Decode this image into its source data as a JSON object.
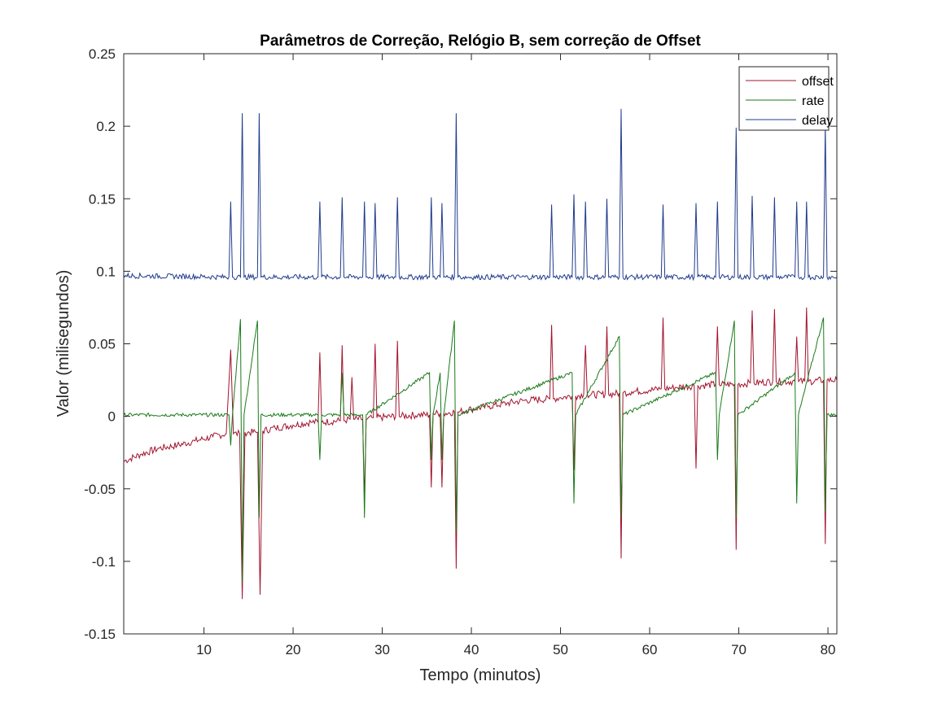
{
  "chart_data": {
    "type": "line",
    "title": "Parâmetros de Correção, Relógio B, sem correção de Offset",
    "xlabel": "Tempo (minutos)",
    "ylabel": "Valor (milisegundos)",
    "xlim": [
      1,
      81
    ],
    "ylim": [
      -0.15,
      0.25
    ],
    "xticks": [
      10,
      20,
      30,
      40,
      50,
      60,
      70,
      80
    ],
    "yticks": [
      -0.15,
      -0.1,
      -0.05,
      0,
      0.05,
      0.1,
      0.15,
      0.2,
      0.25
    ],
    "grid": false,
    "legend": {
      "position": "top-right",
      "entries": [
        "offset",
        "rate",
        "delay"
      ]
    },
    "series": [
      {
        "name": "offset",
        "color": "#a2142f",
        "x": [
          1,
          3,
          5,
          7,
          9,
          11,
          12.5,
          13,
          13.3,
          14,
          14.3,
          14.6,
          16,
          16.3,
          16.6,
          18,
          20,
          22,
          22.8,
          23,
          23.2,
          25.3,
          25.5,
          25.7,
          26.4,
          26.6,
          26.8,
          27.8,
          28,
          28.2,
          29,
          29.2,
          29.4,
          31.5,
          31.7,
          31.9,
          34,
          35.3,
          35.5,
          35.7,
          36.5,
          36.7,
          36.9,
          38.1,
          38.3,
          38.5,
          40,
          42,
          44,
          46,
          48.8,
          49,
          49.2,
          50,
          51.3,
          51.5,
          51.7,
          52.6,
          52.8,
          53,
          55,
          55.2,
          55.4,
          56.6,
          56.8,
          57,
          58,
          60,
          61.3,
          61.5,
          61.7,
          63,
          65,
          65.2,
          65.4,
          67.4,
          67.6,
          67.8,
          69.5,
          69.7,
          69.9,
          71.3,
          71.5,
          71.7,
          73.8,
          74,
          74.2,
          76.3,
          76.5,
          76.7,
          77.4,
          77.6,
          77.8,
          79.5,
          79.7,
          79.9,
          81
        ],
        "y": [
          -0.031,
          -0.026,
          -0.022,
          -0.02,
          -0.017,
          -0.014,
          -0.012,
          0.046,
          -0.012,
          -0.012,
          -0.126,
          -0.011,
          -0.011,
          -0.123,
          -0.01,
          -0.008,
          -0.006,
          -0.004,
          -0.004,
          0.044,
          -0.004,
          -0.003,
          0.049,
          -0.003,
          -0.002,
          0.027,
          -0.002,
          -0.002,
          -0.057,
          -0.002,
          -0.001,
          0.05,
          -0.001,
          0,
          0.052,
          0,
          0.001,
          0.001,
          -0.049,
          0.002,
          0.002,
          -0.049,
          0.002,
          0.003,
          -0.105,
          0.003,
          0.005,
          0.007,
          0.009,
          0.011,
          0.012,
          0.063,
          0.012,
          0.013,
          0.014,
          -0.037,
          0.014,
          0.015,
          0.049,
          0.015,
          0.015,
          0.062,
          0.015,
          0.016,
          -0.098,
          0.016,
          0.017,
          0.018,
          0.019,
          0.068,
          0.019,
          0.02,
          0.021,
          -0.036,
          0.021,
          0.022,
          0.062,
          0.022,
          0.022,
          -0.092,
          0.022,
          0.023,
          0.073,
          0.023,
          0.024,
          0.074,
          0.024,
          0.024,
          0.055,
          0.024,
          0.024,
          0.075,
          0.024,
          0.025,
          -0.088,
          0.025,
          0.025
        ]
      },
      {
        "name": "rate",
        "color": "#1a7a1a",
        "x": [
          1,
          12.8,
          13,
          13.2,
          14.1,
          14.3,
          14.5,
          16,
          16.2,
          16.4,
          22.8,
          23,
          23.2,
          25.3,
          25.5,
          25.7,
          27.8,
          28,
          28.2,
          35.3,
          35.5,
          35.7,
          36.5,
          36.7,
          36.9,
          38.1,
          38.3,
          38.5,
          51.3,
          51.5,
          51.7,
          56.6,
          56.8,
          57,
          67.4,
          67.6,
          67.8,
          69.5,
          69.7,
          69.9,
          76.3,
          76.5,
          76.7,
          79.5,
          79.7,
          79.9,
          81
        ],
        "y": [
          0.001,
          0.001,
          -0.02,
          0.001,
          0.067,
          -0.115,
          0.001,
          0.066,
          -0.07,
          0.001,
          0.001,
          -0.03,
          0.001,
          0.001,
          0.03,
          0.001,
          0.001,
          -0.07,
          0.001,
          0.03,
          -0.03,
          0.001,
          0.03,
          -0.03,
          0.001,
          0.066,
          -0.08,
          0.001,
          0.03,
          -0.06,
          0.001,
          0.055,
          -0.07,
          0.001,
          0.03,
          -0.03,
          0.001,
          0.066,
          -0.07,
          0.001,
          0.03,
          -0.06,
          0.001,
          0.068,
          -0.066,
          0.001,
          0.001
        ]
      },
      {
        "name": "delay",
        "color": "#1f3b8c",
        "x": [
          1,
          12.8,
          13,
          13.2,
          14.1,
          14.3,
          14.5,
          16,
          16.2,
          16.4,
          22.8,
          23,
          23.2,
          25.3,
          25.5,
          25.7,
          27.8,
          28,
          28.2,
          29,
          29.2,
          29.4,
          31.5,
          31.7,
          31.9,
          35.3,
          35.5,
          35.7,
          36.5,
          36.7,
          36.9,
          38.1,
          38.3,
          38.5,
          48.8,
          49,
          49.2,
          51.3,
          51.5,
          51.7,
          52.6,
          52.8,
          53,
          55,
          55.2,
          55.4,
          56.6,
          56.8,
          57,
          61.3,
          61.5,
          61.7,
          65,
          65.2,
          65.4,
          67.4,
          67.6,
          67.8,
          69.5,
          69.7,
          69.9,
          71.3,
          71.5,
          71.7,
          73.8,
          74,
          74.2,
          76.3,
          76.5,
          76.7,
          77.4,
          77.6,
          77.8,
          79.5,
          79.7,
          79.9,
          81
        ],
        "y": [
          0.097,
          0.096,
          0.148,
          0.096,
          0.096,
          0.209,
          0.096,
          0.096,
          0.209,
          0.096,
          0.096,
          0.148,
          0.096,
          0.096,
          0.151,
          0.096,
          0.096,
          0.148,
          0.096,
          0.096,
          0.147,
          0.096,
          0.096,
          0.151,
          0.096,
          0.096,
          0.151,
          0.096,
          0.096,
          0.147,
          0.096,
          0.096,
          0.209,
          0.096,
          0.096,
          0.146,
          0.096,
          0.096,
          0.153,
          0.096,
          0.096,
          0.148,
          0.096,
          0.096,
          0.15,
          0.096,
          0.096,
          0.212,
          0.096,
          0.096,
          0.146,
          0.096,
          0.096,
          0.147,
          0.096,
          0.096,
          0.148,
          0.096,
          0.096,
          0.199,
          0.096,
          0.096,
          0.152,
          0.096,
          0.096,
          0.151,
          0.096,
          0.096,
          0.148,
          0.096,
          0.096,
          0.148,
          0.096,
          0.096,
          0.201,
          0.096,
          0.096
        ]
      }
    ]
  }
}
